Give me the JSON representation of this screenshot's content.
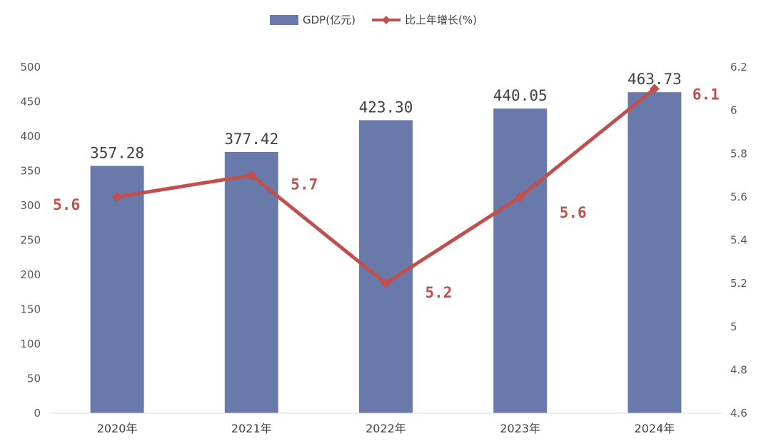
{
  "chart_data": {
    "type": "bar",
    "categories": [
      "2020年",
      "2021年",
      "2022年",
      "2023年",
      "2024年"
    ],
    "series": [
      {
        "name": "GDP(亿元)",
        "type": "bar",
        "axis": "left",
        "values": [
          357.28,
          377.42,
          423.3,
          440.05,
          463.73
        ],
        "labels": [
          "357.28",
          "377.42",
          "423.30",
          "440.05",
          "463.73"
        ],
        "color": "#6879aa"
      },
      {
        "name": "比上年增长(%)",
        "type": "line",
        "axis": "right",
        "values": [
          5.6,
          5.7,
          5.2,
          5.6,
          6.1
        ],
        "labels": [
          "5.6",
          "5.7",
          "5.2",
          "5.6",
          "6.1"
        ],
        "color": "#c0504d"
      }
    ],
    "y_left": {
      "ylim": [
        0,
        500
      ],
      "ticks": [
        "0",
        "50",
        "100",
        "150",
        "200",
        "250",
        "300",
        "350",
        "400",
        "450",
        "500"
      ]
    },
    "y_right": {
      "ylim": [
        4.6,
        6.2
      ],
      "ticks": [
        "4.6",
        "4.8",
        "5",
        "5.2",
        "5.4",
        "5.6",
        "5.8",
        "6",
        "6.2"
      ]
    },
    "legend_position": "top-center",
    "grid": false
  }
}
